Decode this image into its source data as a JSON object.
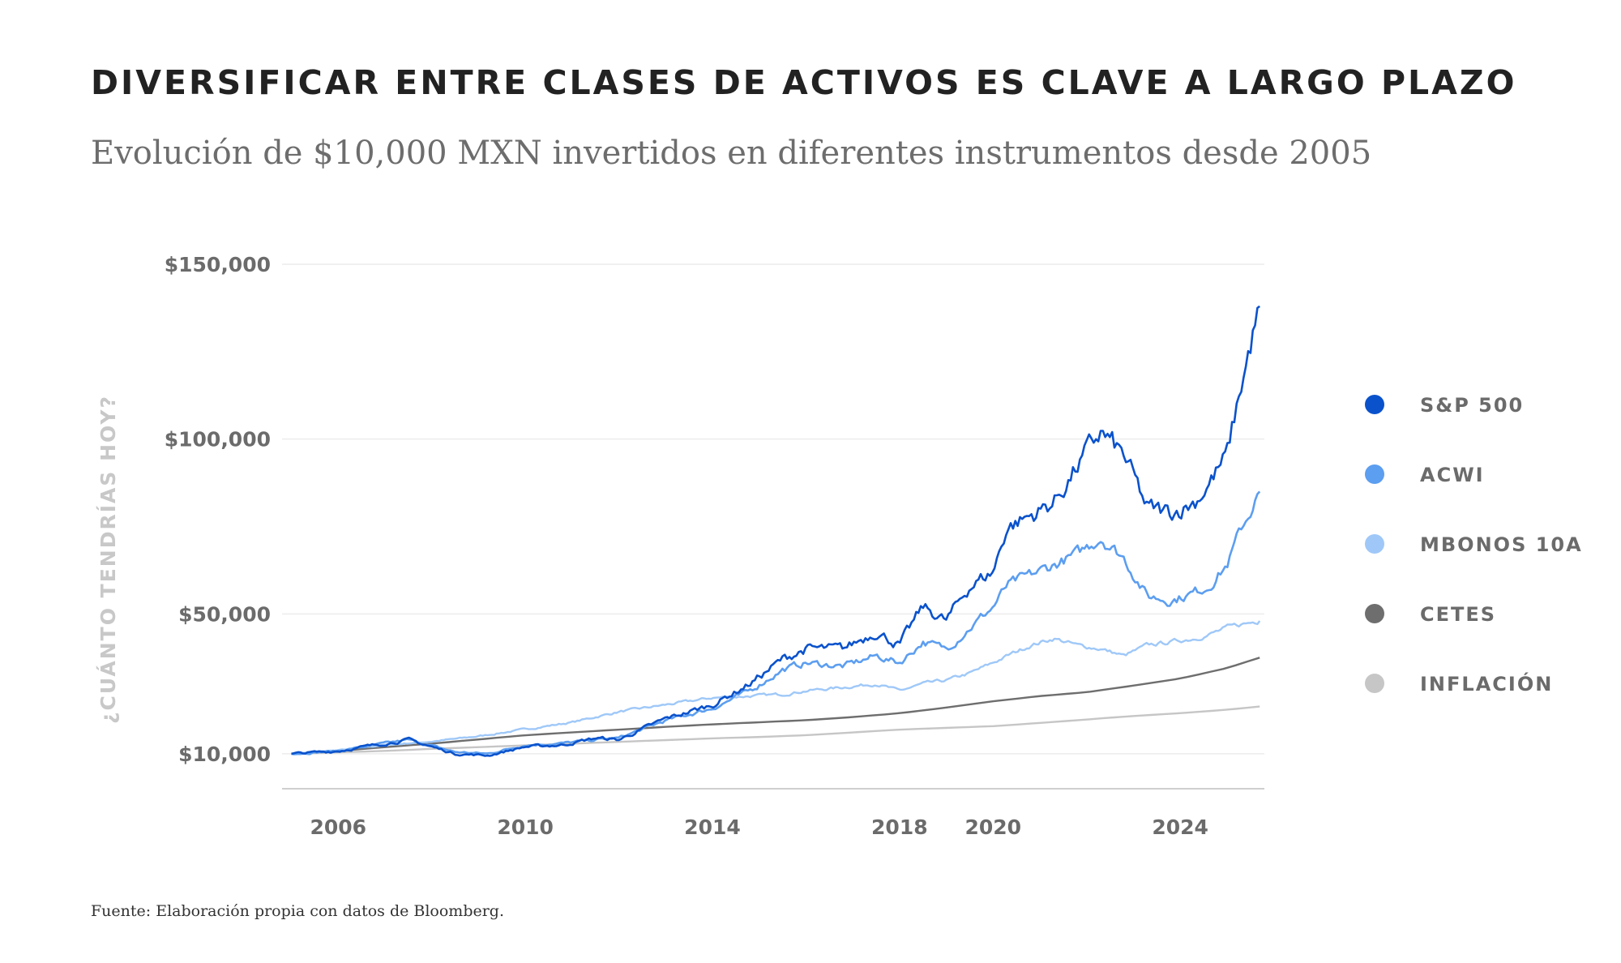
{
  "header": {
    "title": "DIVERSIFICAR ENTRE CLASES DE ACTIVOS ES CLAVE A LARGO PLAZO",
    "subtitle": "Evolución de $10,000 MXN invertidos en diferentes instrumentos desde 2005"
  },
  "footer": {
    "source": "Fuente: Elaboración propia con datos de Bloomberg."
  },
  "chart_data": {
    "type": "line",
    "title": "DIVERSIFICAR ENTRE CLASES DE ACTIVOS ES CLAVE A LARGO PLAZO",
    "subtitle": "Evolución de $10,000 MXN invertidos en diferentes instrumentos desde 2005",
    "xlabel": "",
    "ylabel": "¿CUÁNTO TENDRÍAS HOY?",
    "xlim": [
      2004.8,
      2025.8
    ],
    "ylim": [
      0,
      150000
    ],
    "x_ticks": [
      2006,
      2010,
      2014,
      2018,
      2020,
      2024
    ],
    "x_tick_labels": [
      "2006",
      "2010",
      "2014",
      "2018",
      "2020",
      "2024"
    ],
    "y_ticks": [
      10000,
      50000,
      100000,
      150000
    ],
    "y_tick_labels": [
      "$10,000",
      "$50,000",
      "$100,000",
      "$150,000"
    ],
    "grid": true,
    "legend_position": "right",
    "series": [
      {
        "name": "S&P 500",
        "color": "#0a52cc",
        "x": [
          2005.0,
          2006.0,
          2007.5,
          2008.5,
          2009.2,
          2010.0,
          2010.8,
          2011.5,
          2012.0,
          2013.0,
          2014.0,
          2014.8,
          2015.5,
          2016.0,
          2016.8,
          2017.5,
          2018.0,
          2018.5,
          2019.0,
          2019.5,
          2020.0,
          2020.3,
          2020.8,
          2021.3,
          2021.8,
          2022.3,
          2022.8,
          2023.3,
          2023.8,
          2024.3,
          2024.6,
          2025.0,
          2025.3,
          2025.7
        ],
        "y": [
          10000,
          10800,
          14000,
          10000,
          9500,
          12000,
          12500,
          14500,
          14000,
          20000,
          24000,
          30000,
          37000,
          40000,
          40000,
          45000,
          41000,
          52000,
          48000,
          58000,
          62000,
          75000,
          78000,
          82000,
          92000,
          102000,
          95000,
          80000,
          79000,
          82000,
          87000,
          95000,
          115000,
          138000
        ]
      },
      {
        "name": "ACWI",
        "color": "#5c9ef0",
        "x": [
          2005.0,
          2006.0,
          2007.5,
          2008.5,
          2009.2,
          2010.0,
          2010.8,
          2011.5,
          2012.0,
          2013.0,
          2014.0,
          2014.8,
          2015.5,
          2016.0,
          2016.8,
          2017.5,
          2018.0,
          2018.5,
          2019.0,
          2019.5,
          2020.0,
          2020.3,
          2020.8,
          2021.3,
          2021.8,
          2022.3,
          2022.8,
          2023.3,
          2023.8,
          2024.3,
          2024.6,
          2025.0,
          2025.3,
          2025.7
        ],
        "y": [
          10000,
          10800,
          14000,
          10500,
          10000,
          12500,
          13000,
          14000,
          14500,
          19500,
          23000,
          28000,
          34000,
          36000,
          35000,
          38000,
          36000,
          42000,
          40000,
          46000,
          52000,
          58000,
          61000,
          64000,
          67000,
          72000,
          66000,
          55000,
          54000,
          56000,
          58000,
          64000,
          74000,
          85000
        ]
      },
      {
        "name": "MBONOS 10A",
        "color": "#9fc8f8",
        "x": [
          2005.0,
          2006.0,
          2007.0,
          2008.0,
          2009.0,
          2010.0,
          2011.0,
          2012.0,
          2013.0,
          2014.0,
          2014.8,
          2015.5,
          2016.0,
          2016.8,
          2017.5,
          2018.0,
          2018.5,
          2019.0,
          2019.5,
          2020.0,
          2020.3,
          2020.8,
          2021.3,
          2021.8,
          2022.3,
          2022.8,
          2023.3,
          2023.8,
          2024.3,
          2024.6,
          2025.0,
          2025.3,
          2025.7
        ],
        "y": [
          10000,
          11000,
          12500,
          13500,
          15000,
          17000,
          19000,
          22000,
          24000,
          26000,
          26500,
          27000,
          28000,
          29000,
          30000,
          28000,
          30000,
          31000,
          33000,
          36000,
          38000,
          41000,
          43000,
          41000,
          40000,
          38000,
          41000,
          42000,
          43000,
          44000,
          46000,
          47000,
          48000
        ]
      },
      {
        "name": "CETES",
        "color": "#6e6e6e",
        "x": [
          2005.0,
          2006.0,
          2007.0,
          2008.0,
          2009.0,
          2010.0,
          2011.0,
          2012.0,
          2013.0,
          2014.0,
          2015.0,
          2016.0,
          2017.0,
          2018.0,
          2019.0,
          2020.0,
          2021.0,
          2022.0,
          2023.0,
          2024.0,
          2025.0,
          2025.7
        ],
        "y": [
          10000,
          10800,
          11900,
          12900,
          14100,
          15300,
          16100,
          16900,
          17700,
          18400,
          19000,
          19600,
          20500,
          21600,
          23200,
          25000,
          26500,
          27600,
          29500,
          31500,
          34500,
          37500
        ]
      },
      {
        "name": "INFLACIÓN",
        "color": "#c6c6c6",
        "x": [
          2005.0,
          2006.0,
          2007.0,
          2008.0,
          2009.0,
          2010.0,
          2011.0,
          2012.0,
          2013.0,
          2014.0,
          2015.0,
          2016.0,
          2017.0,
          2018.0,
          2019.0,
          2020.0,
          2021.0,
          2022.0,
          2023.0,
          2024.0,
          2025.0,
          2025.7
        ],
        "y": [
          10000,
          10400,
          10800,
          11400,
          11900,
          12400,
          12900,
          13400,
          13900,
          14400,
          14800,
          15300,
          16100,
          16900,
          17400,
          17900,
          18800,
          19800,
          20800,
          21600,
          22600,
          23500
        ]
      }
    ]
  }
}
